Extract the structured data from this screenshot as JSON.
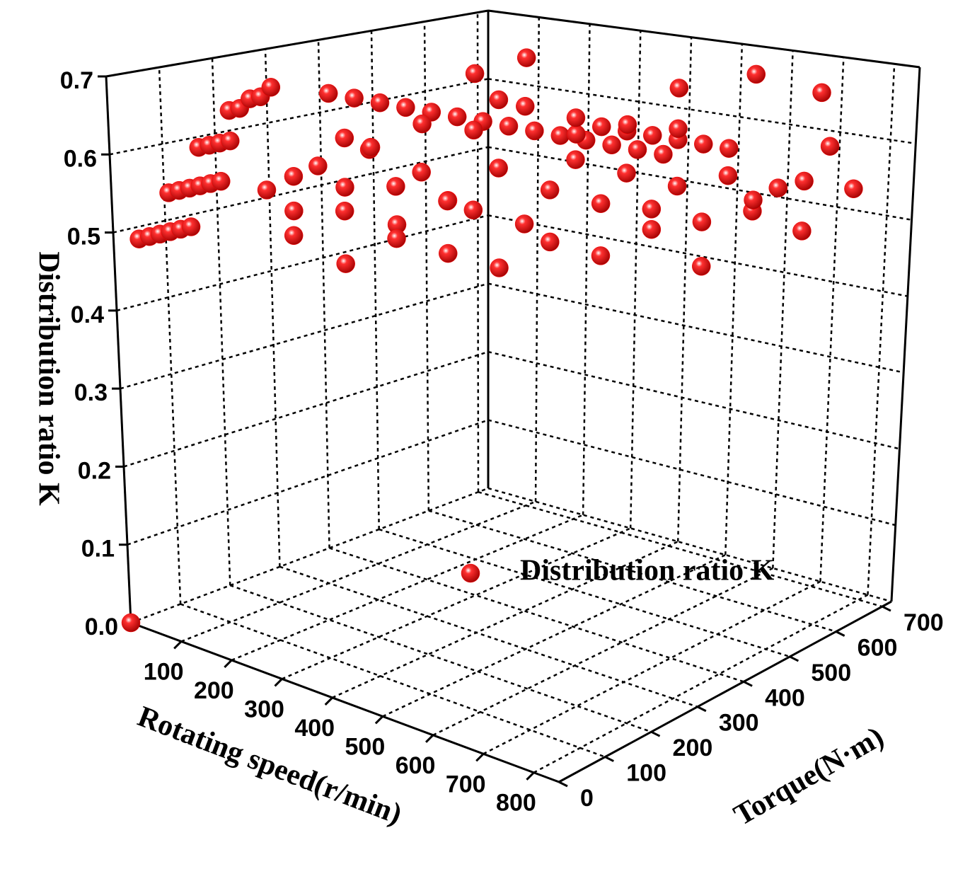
{
  "chart_data": {
    "type": "scatter3d",
    "xlabel": "Rotating speed(r/min)",
    "ylabel": "Torque(N·m)",
    "zlabel": "Distribution ratio K",
    "xlim": [
      0,
      850
    ],
    "ylim": [
      0,
      720
    ],
    "zlim": [
      0,
      0.7
    ],
    "xticks": [
      100,
      200,
      300,
      400,
      500,
      600,
      700,
      800
    ],
    "yticks": [
      0,
      100,
      200,
      300,
      400,
      500,
      600,
      700
    ],
    "zticks": [
      {
        "value": 0,
        "label": "0.0"
      },
      0.1,
      0.2,
      0.3,
      0.4,
      0.5,
      0.6,
      0.7
    ],
    "grid": true,
    "legend": "lower right",
    "series": [
      {
        "name": "Distribution ratio K",
        "color": "#ff0000",
        "x": [
          0,
          50,
          50,
          50,
          50,
          50,
          50,
          50,
          50,
          50,
          50,
          50,
          50,
          50,
          50,
          50,
          50,
          50,
          50,
          50,
          50,
          50,
          100,
          150,
          200,
          250,
          300,
          350,
          400,
          450,
          500,
          550,
          600,
          650,
          700,
          750,
          450,
          500,
          550,
          600,
          650,
          700,
          150,
          200,
          250,
          300,
          350,
          400,
          450,
          500,
          550,
          600,
          650,
          700,
          750,
          200,
          250,
          300,
          350,
          400,
          450,
          500,
          550,
          600,
          650,
          700,
          750,
          150,
          200,
          250,
          300,
          350,
          400,
          100,
          150,
          250,
          300,
          350,
          400,
          450,
          500,
          550,
          600,
          650,
          700,
          750,
          800,
          800,
          700,
          600,
          500,
          200,
          150,
          450,
          350,
          550
        ],
        "y": [
          0,
          0,
          20,
          40,
          60,
          80,
          100,
          60,
          80,
          100,
          120,
          140,
          160,
          120,
          140,
          160,
          180,
          180,
          200,
          220,
          240,
          260,
          320,
          320,
          320,
          320,
          320,
          320,
          320,
          320,
          320,
          320,
          320,
          320,
          320,
          320,
          500,
          500,
          500,
          500,
          500,
          500,
          200,
          250,
          300,
          350,
          200,
          250,
          300,
          350,
          400,
          450,
          500,
          550,
          600,
          100,
          150,
          200,
          250,
          300,
          350,
          400,
          450,
          500,
          550,
          600,
          650,
          350,
          400,
          450,
          500,
          550,
          600,
          250,
          300,
          100,
          150,
          100,
          150,
          200,
          250,
          300,
          350,
          400,
          450,
          500,
          550,
          650,
          680,
          650,
          600,
          600,
          550,
          450,
          400,
          550
        ],
        "z": [
          0,
          0.5,
          0.5,
          0.5,
          0.5,
          0.5,
          0.5,
          0.55,
          0.55,
          0.55,
          0.55,
          0.55,
          0.55,
          0.6,
          0.6,
          0.6,
          0.6,
          0.64,
          0.64,
          0.65,
          0.65,
          0.66,
          0.65,
          0.65,
          0.65,
          0.65,
          0.65,
          0.65,
          0.65,
          0.65,
          0.65,
          0.65,
          0.65,
          0.65,
          0.65,
          0.65,
          0.62,
          0.62,
          0.62,
          0.62,
          0.62,
          0.62,
          0.52,
          0.55,
          0.5,
          0.53,
          0.58,
          0.56,
          0.6,
          0.57,
          0.55,
          0.54,
          0.52,
          0.53,
          0.5,
          0.57,
          0.6,
          0.62,
          0.59,
          0.54,
          0.52,
          0.6,
          0.58,
          0.56,
          0.57,
          0.55,
          0.6,
          0.58,
          0.61,
          0.6,
          0.63,
          0.59,
          0.6,
          0.55,
          0.6,
          0.52,
          0.55,
          0.5,
          0.53,
          0.51,
          0.49,
          0.52,
          0.5,
          0.53,
          0.48,
          0.56,
          0.58,
          0.55,
          0.66,
          0.68,
          0.66,
          0.67,
          0.65,
          0.64,
          0.66,
          0.62
        ]
      }
    ]
  }
}
